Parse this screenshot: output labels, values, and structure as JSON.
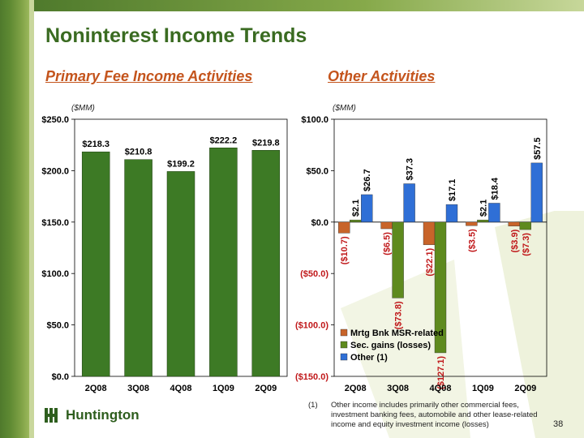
{
  "title": "Noninterest Income Trends",
  "subtitle_left": "Primary Fee Income Activities",
  "subtitle_right": "Other Activities",
  "footnote": {
    "number": "(1)",
    "text": "Other income includes primarily other commercial fees, investment banking fees, automobile and other lease-related income and equity investment income (losses)"
  },
  "page_number": "38",
  "logo_text": "Huntington",
  "colors": {
    "primary_bar": "#3d7a25",
    "mrtg": "#c8642a",
    "sec": "#5e8a1e",
    "other": "#2f6fd6",
    "label_red": "#c0181a"
  },
  "chart_data": [
    {
      "type": "bar",
      "unit_label": "($MM)",
      "categories": [
        "2Q08",
        "3Q08",
        "4Q08",
        "1Q09",
        "2Q09"
      ],
      "values": [
        218.3,
        210.8,
        199.2,
        222.2,
        219.8
      ],
      "data_labels": [
        "$218.3",
        "$210.8",
        "$199.2",
        "$222.2",
        "$219.8"
      ],
      "ylim": [
        0,
        250
      ],
      "yticks": [
        0,
        50,
        100,
        150,
        200,
        250
      ],
      "ytick_labels": [
        "$0.0",
        "$50.0",
        "$100.0",
        "$150.0",
        "$200.0",
        "$250.0"
      ]
    },
    {
      "type": "bar",
      "unit_label": "($MM)",
      "categories": [
        "2Q08",
        "3Q08",
        "4Q08",
        "1Q09",
        "2Q09"
      ],
      "series": [
        {
          "name": "Mrtg Bnk MSR-related",
          "values": [
            -10.7,
            -6.5,
            -22.1,
            -3.5,
            -3.9
          ],
          "data_labels": [
            "($10.7)",
            "($6.5)",
            "($22.1)",
            "($3.5)",
            "($3.9)"
          ]
        },
        {
          "name": "Sec. gains (losses)",
          "values": [
            2.1,
            -73.8,
            -127.1,
            2.1,
            -7.3
          ],
          "data_labels": [
            "$2.1",
            "($73.8)",
            "($127.1)",
            "$2.1",
            "($7.3)"
          ]
        },
        {
          "name": "Other (1)",
          "values": [
            26.7,
            37.3,
            17.1,
            18.4,
            57.5
          ],
          "data_labels": [
            "$26.7",
            "$37.3",
            "$17.1",
            "$18.4",
            "$57.5"
          ]
        }
      ],
      "ylim": [
        -150,
        100
      ],
      "yticks": [
        -150,
        -100,
        -50,
        0,
        50,
        100
      ],
      "ytick_labels": [
        "($150.0)",
        "($100.0)",
        "($50.0)",
        "$0.0",
        "$50.0",
        "$100.0"
      ],
      "legend_position": "bottom-left"
    }
  ]
}
